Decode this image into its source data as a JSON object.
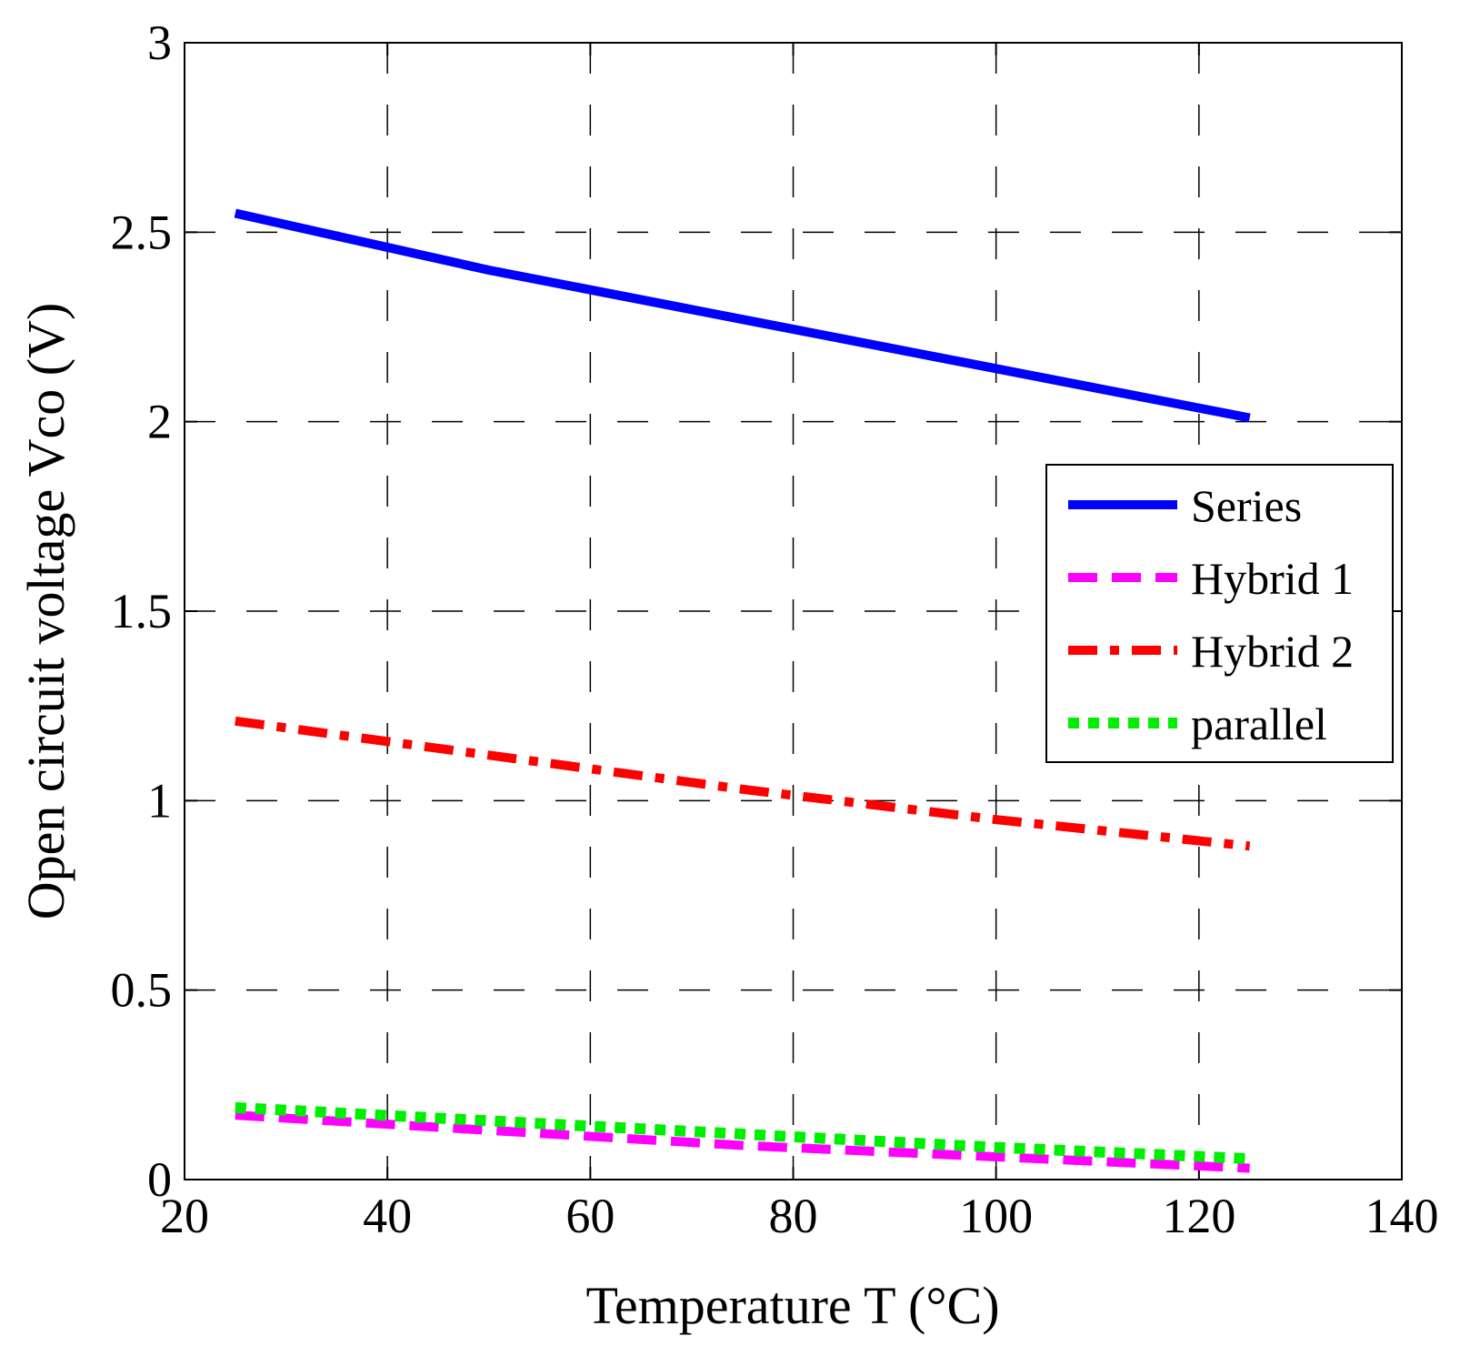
{
  "chart_data": {
    "type": "line",
    "title": "",
    "xlabel": "Temperature T (°C)",
    "ylabel": "Open circuit voltage Vco (V)",
    "xlim": [
      20,
      140
    ],
    "ylim": [
      0,
      3
    ],
    "xticks": [
      20,
      40,
      60,
      80,
      100,
      120,
      140
    ],
    "xtick_labels": [
      "20",
      "40",
      "60",
      "80",
      "100",
      "120",
      "140"
    ],
    "yticks": [
      0,
      0.5,
      1,
      1.5,
      2,
      2.5,
      3
    ],
    "ytick_labels": [
      "0",
      "0.5",
      "1",
      "1.5",
      "2",
      "2.5",
      "3"
    ],
    "grid": true,
    "legend_position": "right",
    "series": [
      {
        "name": "Series",
        "color": "#0000ff",
        "style": "solid",
        "x": [
          25,
          50,
          75,
          100,
          125
        ],
        "y": [
          2.55,
          2.4,
          2.27,
          2.14,
          2.01
        ]
      },
      {
        "name": "Hybrid 1",
        "color": "#ff00ff",
        "style": "dashed",
        "x": [
          25,
          50,
          75,
          100,
          125
        ],
        "y": [
          0.17,
          0.13,
          0.09,
          0.06,
          0.03
        ]
      },
      {
        "name": "Hybrid 2",
        "color": "#ff0000",
        "style": "dashdot",
        "x": [
          25,
          50,
          75,
          100,
          125
        ],
        "y": [
          1.21,
          1.12,
          1.03,
          0.95,
          0.88
        ]
      },
      {
        "name": "parallel",
        "color": "#00ee00",
        "style": "dotted",
        "x": [
          25,
          50,
          75,
          100,
          125
        ],
        "y": [
          0.19,
          0.155,
          0.12,
          0.085,
          0.055
        ]
      }
    ]
  }
}
